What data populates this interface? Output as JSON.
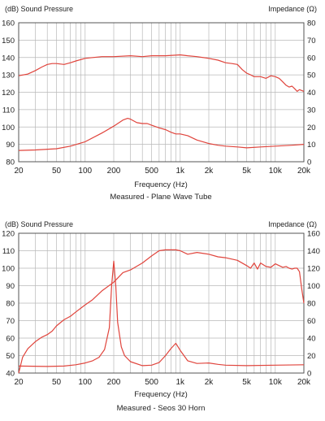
{
  "chart_data": [
    {
      "type": "line",
      "title": "Measured - Plane Wave Tube",
      "xlabel": "Frequency (Hz)",
      "ylabel_left": "(dB) Sound Pressure",
      "ylabel_right": "Impedance (Ω)",
      "x_scale": "log",
      "xlim": [
        20,
        20000
      ],
      "ylim_left": [
        80,
        160
      ],
      "ylim_right": [
        0,
        80
      ],
      "x_ticks": [
        20,
        50,
        100,
        200,
        500,
        1000,
        2000,
        5000,
        10000,
        20000
      ],
      "x_tick_labels": [
        "20",
        "50",
        "100",
        "200",
        "500",
        "1k",
        "2k",
        "5k",
        "10k",
        "20k"
      ],
      "y_ticks_left": [
        "160",
        "150",
        "140",
        "130",
        "120",
        "110",
        "100",
        "90",
        "80"
      ],
      "y_ticks_right": [
        "80",
        "70",
        "60",
        "50",
        "40",
        "30",
        "20",
        "10",
        "0"
      ],
      "grid": true,
      "series": [
        {
          "axis": "left",
          "color": "#e0443c",
          "x": [
            20,
            25,
            30,
            35,
            40,
            45,
            50,
            60,
            70,
            80,
            100,
            120,
            150,
            200,
            300,
            400,
            500,
            700,
            1000,
            1200,
            1500,
            2000,
            2500,
            3000,
            3500,
            4000,
            4500,
            5000,
            5500,
            6000,
            7000,
            8000,
            9000,
            10000,
            11000,
            12000,
            13000,
            14000,
            15000,
            16000,
            17000,
            18000,
            20000
          ],
          "y": [
            129.5,
            130.5,
            132.5,
            134.5,
            136,
            136.5,
            136.5,
            136,
            137,
            138,
            139.5,
            140,
            140.5,
            140.5,
            141,
            140.5,
            141,
            141,
            141.5,
            141,
            140.5,
            139.5,
            138.5,
            137,
            136.5,
            136,
            133,
            131,
            130,
            129,
            129,
            128,
            129.5,
            129,
            128,
            126,
            124,
            123,
            123.5,
            122,
            120.5,
            121.5,
            120.5
          ]
        },
        {
          "axis": "right",
          "color": "#e0443c",
          "x": [
            20,
            30,
            50,
            70,
            100,
            150,
            200,
            250,
            280,
            300,
            350,
            400,
            450,
            500,
            600,
            700,
            800,
            900,
            1000,
            1200,
            1500,
            2000,
            2500,
            3000,
            4000,
            5000,
            7000,
            10000,
            15000,
            20000
          ],
          "y": [
            6.5,
            6.8,
            7.5,
            9,
            11.5,
            16.5,
            20.5,
            24,
            25,
            24.5,
            22.5,
            22,
            22,
            21,
            19.5,
            18.5,
            17,
            16,
            16,
            15,
            12.5,
            10.5,
            9.5,
            9,
            8.5,
            8,
            8.5,
            9,
            9.5,
            10
          ]
        }
      ]
    },
    {
      "type": "line",
      "title": "Measured - Seos 30 Horn",
      "xlabel": "Frequency (Hz)",
      "ylabel_left": "(dB) Sound Pressure",
      "ylabel_right": "Impedance (Ω)",
      "x_scale": "log",
      "xlim": [
        20,
        20000
      ],
      "ylim_left": [
        40,
        120
      ],
      "ylim_right": [
        0,
        160
      ],
      "x_ticks": [
        20,
        50,
        100,
        200,
        500,
        1000,
        2000,
        5000,
        10000,
        20000
      ],
      "x_tick_labels": [
        "20",
        "50",
        "100",
        "200",
        "500",
        "1k",
        "2k",
        "5k",
        "10k",
        "20k"
      ],
      "y_ticks_left": [
        "120",
        "110",
        "100",
        "90",
        "80",
        "70",
        "60",
        "50",
        "40"
      ],
      "y_ticks_right": [
        "160",
        "140",
        "120",
        "100",
        "80",
        "60",
        "40",
        "20",
        "0"
      ],
      "grid": true,
      "series": [
        {
          "axis": "left",
          "color": "#e0443c",
          "x": [
            20,
            22,
            25,
            30,
            35,
            40,
            45,
            50,
            60,
            70,
            80,
            100,
            120,
            150,
            200,
            250,
            300,
            400,
            500,
            600,
            700,
            800,
            900,
            1000,
            1200,
            1500,
            2000,
            2500,
            3000,
            4000,
            5000,
            5500,
            6000,
            6500,
            7000,
            8000,
            9000,
            10000,
            11000,
            12000,
            13000,
            14000,
            15000,
            16000,
            17000,
            18000,
            19000,
            20000
          ],
          "y": [
            40,
            49,
            54,
            58,
            60.5,
            62,
            64,
            67,
            70.5,
            72.5,
            75,
            79,
            82,
            87,
            92,
            97.5,
            99,
            103,
            107,
            110,
            110.5,
            110.5,
            110.5,
            110,
            108,
            109,
            108,
            106.5,
            106,
            104.5,
            101.5,
            100,
            103,
            99.5,
            103,
            101,
            100.5,
            102.5,
            101.5,
            100.5,
            101,
            100,
            99.5,
            100,
            100,
            98,
            88,
            80
          ]
        },
        {
          "axis": "right",
          "color": "#e0443c",
          "x": [
            20,
            40,
            60,
            80,
            100,
            120,
            140,
            160,
            180,
            190,
            200,
            210,
            220,
            240,
            260,
            300,
            400,
            500,
            600,
            700,
            800,
            900,
            1000,
            1200,
            1500,
            2000,
            2500,
            3000,
            5000,
            10000,
            20000
          ],
          "y": [
            8,
            7.5,
            8,
            9.5,
            11.5,
            14,
            18,
            27,
            52,
            100,
            128,
            100,
            58,
            30,
            20,
            13,
            8.5,
            9,
            12,
            20,
            28,
            34,
            26,
            14,
            11,
            11.5,
            10,
            9,
            8.5,
            9,
            9.5
          ]
        }
      ]
    }
  ]
}
